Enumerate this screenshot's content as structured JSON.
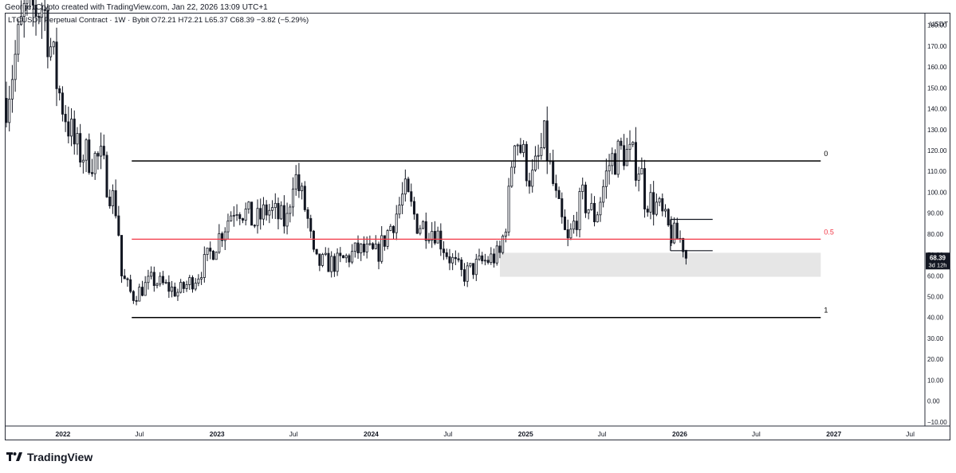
{
  "header": {
    "text": "George1Crypto created with TradingView.com, Jan 22, 2026 13:09 UTC+1"
  },
  "symbol_info": {
    "text": "LTCUSDT Perpetual Contract · 1W · Bybit  O72.21  H72.21  L65.37  C68.39  −3.82 (−5.29%)"
  },
  "brand": {
    "name": "TradingView",
    "icon": "tradingview-logo-icon"
  },
  "colors": {
    "up": "#ffffff",
    "down": "#131722",
    "wick": "#131722",
    "fib_line": "#000000",
    "fib_mid": "#f23645",
    "zone": "#e6e6e6"
  },
  "chart_data": {
    "type": "candlestick",
    "currency": "USDT",
    "y_ticks": [
      -10,
      0,
      10,
      20,
      30,
      40,
      50,
      60,
      70,
      80,
      90,
      100,
      110,
      120,
      130,
      140,
      150,
      160,
      170,
      180
    ],
    "ylim": [
      -12,
      186
    ],
    "x_ticks": [
      "2022",
      "Jul",
      "2023",
      "Jul",
      "2024",
      "Jul",
      "2025",
      "Jul",
      "2026",
      "Jul",
      "2027",
      "Jul"
    ],
    "x_tick_dates": [
      "2022-01-01",
      "2022-07-01",
      "2023-01-01",
      "2023-07-01",
      "2024-01-01",
      "2024-07-01",
      "2025-01-01",
      "2025-07-01",
      "2026-01-01",
      "2026-07-01",
      "2027-01-01",
      "2027-07-01"
    ],
    "xlim": [
      "2021-08-20",
      "2027-08-01"
    ],
    "last_price": {
      "value": 68.39,
      "label": "68.39",
      "countdown": "3d 12h"
    },
    "fib_levels": [
      {
        "label": "0",
        "value": 115,
        "start": "2022-06-13",
        "end": "2026-12-01"
      },
      {
        "label": "0.5",
        "value": 77.5,
        "start": "2022-06-13",
        "end": "2026-12-01"
      },
      {
        "label": "1",
        "value": 40,
        "start": "2022-06-13",
        "end": "2026-12-01"
      }
    ],
    "zones": [
      {
        "start": "2024-11-01",
        "end": "2026-12-01",
        "low": 59.5,
        "high": 71
      }
    ],
    "annotation_lines": [
      {
        "start": "2025-12-10",
        "end": "2026-03-20",
        "value": 87
      },
      {
        "start": "2025-12-10",
        "end": "2026-03-20",
        "value": 72
      }
    ],
    "anchors": [
      [
        "2021-08-20",
        145
      ],
      [
        "2021-10-01",
        185
      ],
      [
        "2021-11-15",
        190
      ],
      [
        "2021-12-20",
        150
      ],
      [
        "2022-02-01",
        120
      ],
      [
        "2022-04-01",
        115
      ],
      [
        "2022-05-10",
        90
      ],
      [
        "2022-05-20",
        60
      ],
      [
        "2022-06-15",
        50
      ],
      [
        "2022-08-01",
        58
      ],
      [
        "2022-10-01",
        52
      ],
      [
        "2022-11-15",
        60
      ],
      [
        "2022-12-20",
        72
      ],
      [
        "2023-02-15",
        95
      ],
      [
        "2023-04-01",
        85
      ],
      [
        "2023-05-01",
        92
      ],
      [
        "2023-06-15",
        85
      ],
      [
        "2023-07-01",
        110
      ],
      [
        "2023-08-01",
        90
      ],
      [
        "2023-08-20",
        66
      ],
      [
        "2023-10-15",
        66
      ],
      [
        "2023-12-01",
        72
      ],
      [
        "2024-01-15",
        70
      ],
      [
        "2024-03-01",
        90
      ],
      [
        "2024-03-20",
        100
      ],
      [
        "2024-04-20",
        85
      ],
      [
        "2024-06-01",
        82
      ],
      [
        "2024-07-01",
        70
      ],
      [
        "2024-08-05",
        60
      ],
      [
        "2024-09-15",
        66
      ],
      [
        "2024-11-01",
        70
      ],
      [
        "2024-11-20",
        92
      ],
      [
        "2024-12-05",
        130
      ],
      [
        "2025-01-15",
        105
      ],
      [
        "2025-02-15",
        125
      ],
      [
        "2025-03-15",
        95
      ],
      [
        "2025-04-10",
        75
      ],
      [
        "2025-05-15",
        97
      ],
      [
        "2025-06-15",
        88
      ],
      [
        "2025-07-20",
        115
      ],
      [
        "2025-08-20",
        120
      ],
      [
        "2025-09-30",
        112
      ],
      [
        "2025-10-10",
        98
      ],
      [
        "2025-11-10",
        93
      ],
      [
        "2025-12-10",
        80
      ],
      [
        "2026-01-05",
        77
      ],
      [
        "2026-01-22",
        68.39
      ]
    ]
  }
}
